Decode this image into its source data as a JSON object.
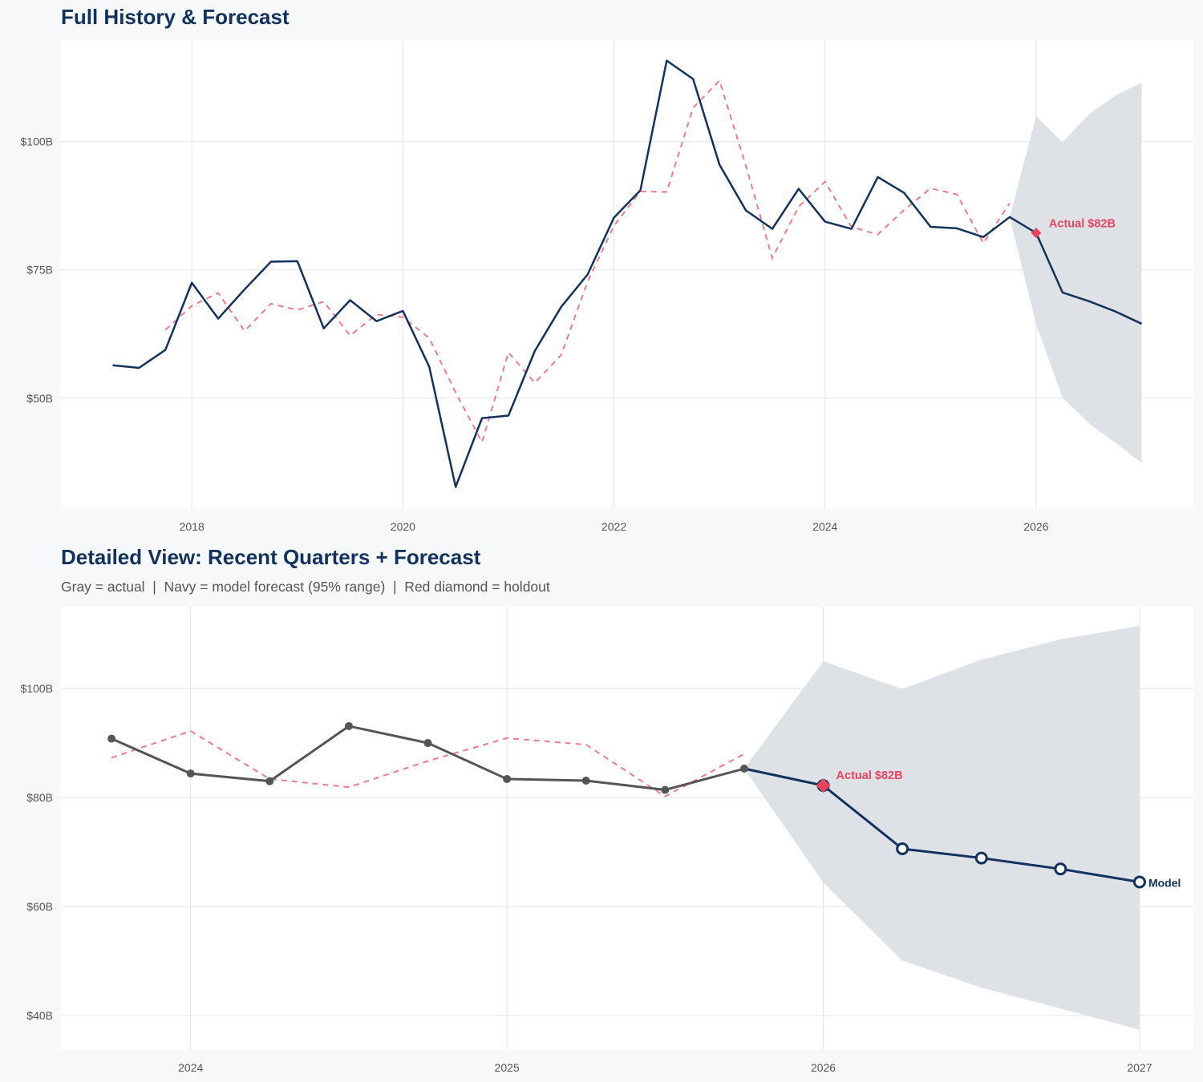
{
  "colors": {
    "navy": "#12325e",
    "red": "#e6435f",
    "dashed": "#ef7a8c",
    "gray": "#555555",
    "band": "#dce0e6",
    "background": "#f7f8fa",
    "plot_bg": "#ffffff",
    "grid": "#e3e3e3"
  },
  "chart_data": [
    {
      "type": "line",
      "title": "Full History & Forecast",
      "xlim": [
        2016.76,
        2027.49
      ],
      "ylim": [
        28.4,
        119.8
      ],
      "x_ticks": [
        2018,
        2020,
        2022,
        2024,
        2026
      ],
      "x_tick_labels": [
        "2018",
        "2020",
        "2022",
        "2024",
        "2026"
      ],
      "y_ticks": [
        50,
        75,
        100
      ],
      "y_tick_labels": [
        "$50B",
        "$75B",
        "$100B"
      ],
      "grid": true,
      "series": {
        "actual": {
          "x": [
            2017.25,
            2017.5,
            2017.75,
            2018,
            2018.25,
            2018.5,
            2018.75,
            2019,
            2019.25,
            2019.5,
            2019.75,
            2020,
            2020.25,
            2020.5,
            2020.75,
            2021,
            2021.25,
            2021.5,
            2021.75,
            2022,
            2022.25,
            2022.5,
            2022.75,
            2023,
            2023.25,
            2023.5,
            2023.75,
            2024,
            2024.25,
            2024.5,
            2024.75,
            2025,
            2025.25,
            2025.5,
            2025.75
          ],
          "values": [
            56.4,
            55.9,
            59.4,
            72.5,
            65.5,
            71.2,
            76.6,
            76.7,
            63.6,
            69.1,
            65.0,
            67.0,
            56.1,
            32.7,
            46.1,
            46.6,
            59.2,
            67.8,
            74.1,
            85.2,
            90.5,
            115.8,
            112.2,
            95.5,
            86.6,
            83.0,
            90.8,
            84.4,
            83.0,
            93.1,
            90.0,
            83.4,
            83.1,
            81.4,
            85.3
          ]
        },
        "dashed": {
          "x": [
            2017.75,
            2018,
            2018.25,
            2018.5,
            2018.75,
            2019,
            2019.25,
            2019.5,
            2019.75,
            2020,
            2020.25,
            2020.5,
            2020.75,
            2021,
            2021.25,
            2021.5,
            2021.75,
            2022,
            2022.25,
            2022.5,
            2022.75,
            2023,
            2023.25,
            2023.5,
            2023.75,
            2024,
            2024.25,
            2024.5,
            2024.75,
            2025,
            2025.25,
            2025.5,
            2025.75
          ],
          "values": [
            63.3,
            68.0,
            70.5,
            63.1,
            68.4,
            67.2,
            68.8,
            62.2,
            66.3,
            65.8,
            61.7,
            51.1,
            41.4,
            58.9,
            53.0,
            58.4,
            72.7,
            83.6,
            90.3,
            90.2,
            106.6,
            111.9,
            95.3,
            77.3,
            87.3,
            92.2,
            83.4,
            81.9,
            86.7,
            90.9,
            89.7,
            80.2,
            88.0
          ]
        },
        "forecast": {
          "x": [
            2026,
            2026.25,
            2026.5,
            2026.75,
            2027
          ],
          "values": [
            82.2,
            70.6,
            68.9,
            66.9,
            64.5
          ]
        },
        "band": {
          "x": [
            2025.75,
            2026,
            2026.25,
            2026.5,
            2026.75,
            2027
          ],
          "lower": [
            85.3,
            64.4,
            50.1,
            45.1,
            41.3,
            37.4
          ],
          "upper": [
            85.3,
            105.0,
            99.9,
            105.3,
            109.0,
            111.5
          ]
        },
        "holdout": {
          "x": 2026,
          "value": 82.2
        }
      },
      "annotations": {
        "holdout_label": "Actual $82B"
      }
    },
    {
      "type": "line",
      "title": "Detailed View: Recent Quarters + Forecast",
      "subtitle": "Gray = actual  |  Navy = model forecast (95% range)  |  Red diamond = holdout",
      "xlim": [
        2023.59,
        2027.17
      ],
      "ylim": [
        33.7,
        115
      ],
      "x_ticks": [
        2024,
        2025,
        2026,
        2027
      ],
      "x_tick_labels": [
        "2024",
        "2025",
        "2026",
        "2027"
      ],
      "y_ticks": [
        40,
        60,
        80,
        100
      ],
      "y_tick_labels": [
        "$40B",
        "$60B",
        "$80B",
        "$100B"
      ],
      "grid": true,
      "annotations": {
        "holdout_label": "Actual $82B",
        "forecast_label": "Model"
      }
    }
  ]
}
